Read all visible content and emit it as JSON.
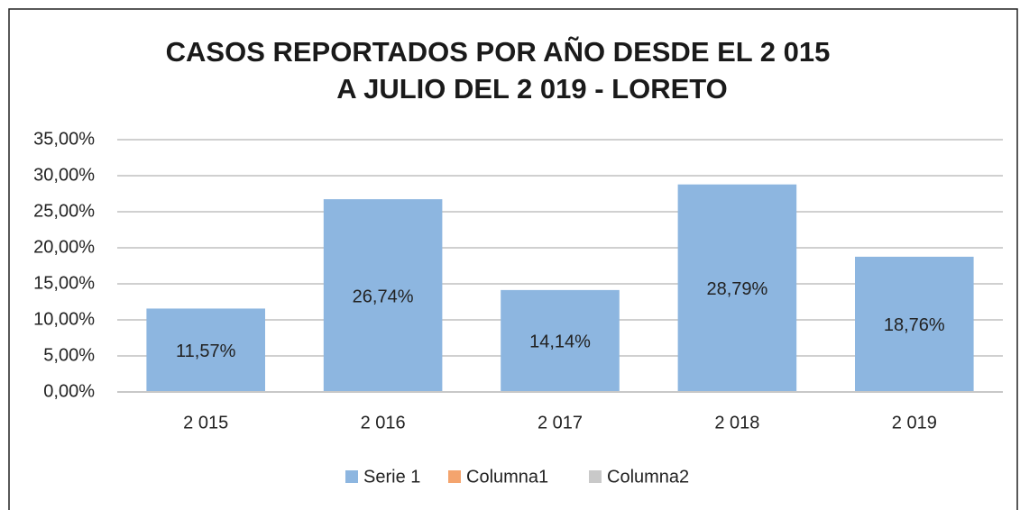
{
  "chart_data": {
    "type": "bar",
    "title": [
      "CASOS REPORTADOS POR AÑO DESDE EL 2 015",
      "A JULIO DEL 2 019 -  LORETO"
    ],
    "categories": [
      "2 015",
      "2 016",
      "2 017",
      "2 018",
      "2 019"
    ],
    "series": [
      {
        "name": "Serie 1",
        "color": "#8db6e0",
        "values": [
          11.57,
          26.74,
          14.14,
          28.79,
          18.76
        ],
        "value_labels": [
          "11,57%",
          "26,74%",
          "14,14%",
          "28,79%",
          "18,76%"
        ]
      },
      {
        "name": "Columna1",
        "color": "#f4a46e",
        "values": [
          null,
          null,
          null,
          null,
          null
        ]
      },
      {
        "name": "Columna2",
        "color": "#c9c9c9",
        "values": [
          null,
          null,
          null,
          null,
          null
        ]
      }
    ],
    "ylim": [
      0,
      35
    ],
    "yticks": [
      {
        "value": 0,
        "label": "0,00%"
      },
      {
        "value": 5,
        "label": "5,00%"
      },
      {
        "value": 10,
        "label": "10,00%"
      },
      {
        "value": 15,
        "label": "15,00%"
      },
      {
        "value": 20,
        "label": "20,00%"
      },
      {
        "value": 25,
        "label": "25,00%"
      },
      {
        "value": 30,
        "label": "30,00%"
      },
      {
        "value": 35,
        "label": "35,00%"
      }
    ],
    "grid": true,
    "legend": "bottom"
  }
}
